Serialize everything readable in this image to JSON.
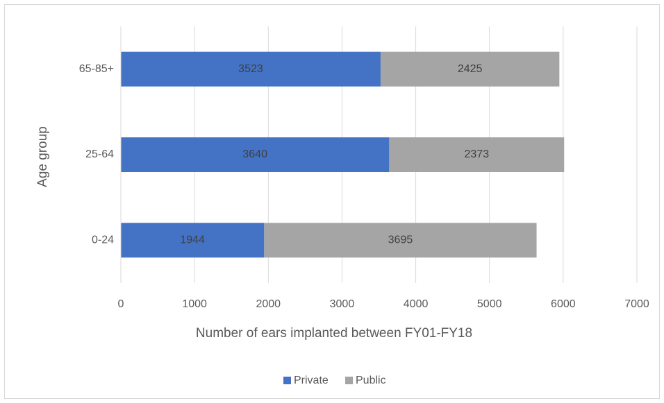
{
  "chart_data": {
    "type": "stacked-bar-horizontal",
    "categories": [
      "0-24",
      "25-64",
      "65-85+"
    ],
    "series": [
      {
        "name": "Private",
        "color": "#4472c4",
        "values": [
          1944,
          3640,
          3523
        ]
      },
      {
        "name": "Public",
        "color": "#a5a5a5",
        "values": [
          3695,
          2373,
          2425
        ]
      }
    ],
    "xlim": [
      0,
      7000
    ],
    "xticks": [
      0,
      1000,
      2000,
      3000,
      4000,
      5000,
      6000,
      7000
    ],
    "x_label": "Number of ears implanted between FY01-FY18",
    "y_label": "Age group",
    "grid": true,
    "legend": "bottom"
  }
}
